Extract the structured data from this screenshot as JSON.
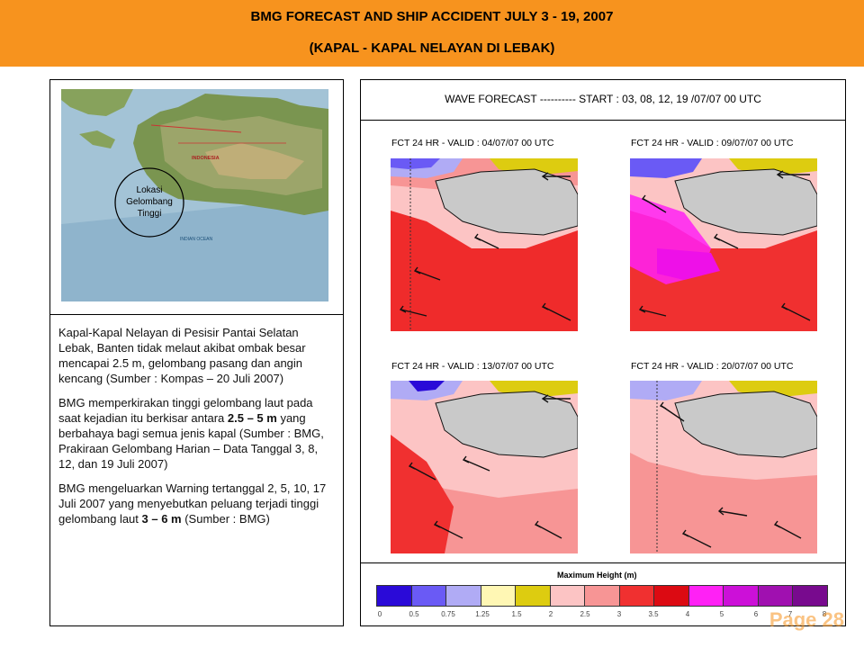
{
  "header": {
    "title_line1": "BMG FORECAST AND SHIP ACCIDENT JULY 3 - 19, 2007",
    "title_line2": "(KAPAL - KAPAL NELAYAN DI LEBAK)"
  },
  "map": {
    "circle_label_line1": "Lokasi",
    "circle_label_line2": "Gelombang",
    "circle_label_line3": "Tinggi",
    "country_label": "INDONESIA",
    "ocean_label": "INDIAN OCEAN"
  },
  "text": {
    "para1": "Kapal-Kapal Nelayan di Pesisir Pantai Selatan Lebak, Banten tidak melaut akibat ombak besar mencapai 2.5 m, gelombang pasang dan angin kencang (Sumber : Kompas – 20 Juli 2007)",
    "para2_pre": "BMG memperkirakan tinggi gelombang laut pada saat kejadian itu berkisar antara ",
    "para2_bold": "2.5 – 5 m",
    "para2_post": " yang berbahaya bagi semua jenis kapal (Sumber : BMG, Prakiraan Gelombang Harian – Data Tanggal 3, 8, 12, dan 19 Juli 2007)",
    "para3_pre": "BMG mengeluarkan Warning tertanggal 2, 5, 10, 17 Juli 2007 yang menyebutkan peluang terjadi tinggi gelombang laut ",
    "para3_bold": "3 – 6 m",
    "para3_post": " (Sumber : BMG)"
  },
  "forecast": {
    "title": "WAVE FORECAST ----------  START : 03, 08, 12, 19 /07/07 00 UTC",
    "panels": [
      "FCT 24 HR - VALID : 04/07/07 00 UTC",
      "FCT 24 HR - VALID : 09/07/07 00 UTC",
      "FCT 24 HR - VALID : 13/07/07 00 UTC",
      "FCT 24 HR - VALID : 20/07/07 00 UTC"
    ]
  },
  "legend": {
    "title": "Maximum Height (m)",
    "ticks": [
      "0",
      "0.5",
      "0.75",
      "1.25",
      "1.5",
      "2",
      "2.5",
      "3",
      "3.5",
      "4",
      "5",
      "6",
      "7",
      "8"
    ],
    "colors": [
      "#2a0ad8",
      "#6a5af5",
      "#b0abf5",
      "#fff7b4",
      "#ddcc10",
      "#fcc4c4",
      "#f79595",
      "#f03030",
      "#dc0a12",
      "#ff21f5",
      "#cc10d8",
      "#a010b0",
      "#780a8e"
    ]
  },
  "footer": {
    "page_label": "Page 28"
  }
}
